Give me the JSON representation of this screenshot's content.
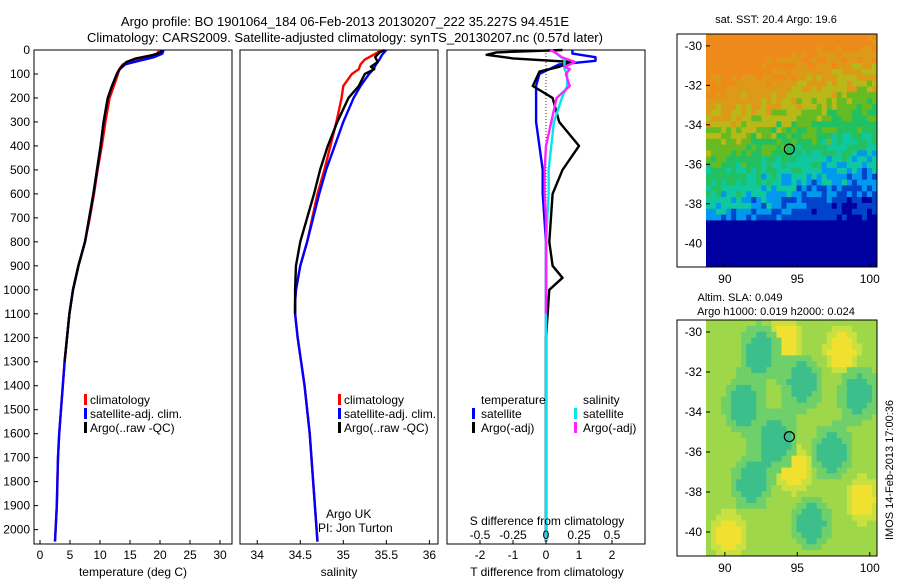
{
  "header": {
    "title_line1": "Argo profile: BO 1901064_184 06-Feb-2013 20130207_222 35.227S 94.451E",
    "title_line2": "Climatology: CARS2009. Satellite-adjusted climatology: synTS_20130207.nc (0.57d later)"
  },
  "side_stamp": "IMOS 14-Feb-2013 17:00:36",
  "colors": {
    "climatology": "#ff0000",
    "satellite": "#0000ff",
    "argo": "#000000",
    "sal_satellite": "#00e5ee",
    "sal_argo": "#ff22ff"
  },
  "chart_data": [
    {
      "id": "temperature",
      "type": "line",
      "xlabel": "temperature (deg C)",
      "ylabel": "",
      "xlim": [
        -1,
        32
      ],
      "ylim": [
        2060,
        0
      ],
      "xticks": [
        0,
        5,
        10,
        15,
        20,
        25,
        30
      ],
      "yticks": [
        0,
        100,
        200,
        300,
        400,
        500,
        600,
        700,
        800,
        900,
        1000,
        1100,
        1200,
        1300,
        1400,
        1500,
        1600,
        1700,
        1800,
        1900,
        2000
      ],
      "legend": [
        "climatology",
        "satellite-adj. clim.",
        "Argo(..raw -QC)"
      ],
      "series": [
        {
          "name": "climatology",
          "color": "#ff0000",
          "depth": [
            0,
            15,
            30,
            45,
            60,
            80,
            100,
            150,
            200,
            300,
            400,
            500,
            600,
            700,
            800,
            900,
            1000,
            1100,
            1200,
            1300,
            1400,
            1500,
            1600,
            1700,
            1800,
            1900,
            2000,
            2050
          ],
          "values": [
            19.8,
            19.6,
            17.5,
            15.0,
            13.8,
            13.2,
            13.0,
            12.3,
            11.6,
            10.9,
            10.3,
            9.6,
            9.0,
            8.3,
            7.5,
            6.4,
            5.5,
            4.9,
            4.5,
            4.1,
            3.8,
            3.5,
            3.2,
            3.0,
            2.9,
            2.8,
            2.6,
            2.5
          ]
        },
        {
          "name": "satellite-adj. clim.",
          "color": "#0000ff",
          "depth": [
            0,
            15,
            30,
            45,
            60,
            80,
            100,
            150,
            200,
            300,
            400,
            500,
            600,
            700,
            800,
            900,
            1000,
            1100,
            1200,
            1300,
            1400,
            1500,
            1600,
            1700,
            1800,
            1900,
            2000,
            2050
          ],
          "values": [
            20.6,
            20.4,
            19.0,
            16.5,
            14.2,
            13.3,
            12.8,
            12.0,
            11.3,
            10.6,
            10.1,
            9.5,
            8.9,
            8.2,
            7.5,
            6.4,
            5.5,
            4.9,
            4.5,
            4.1,
            3.8,
            3.5,
            3.2,
            3.0,
            2.9,
            2.8,
            2.6,
            2.5
          ]
        },
        {
          "name": "Argo(..raw -QC)",
          "color": "#000000",
          "depth": [
            0,
            10,
            20,
            35,
            50,
            70,
            90,
            150,
            200,
            300,
            400,
            500,
            600,
            700,
            800,
            900,
            1000,
            1100,
            1200,
            1300
          ],
          "values": [
            20.3,
            20.1,
            19.0,
            16.0,
            14.4,
            13.6,
            13.0,
            12.0,
            11.3,
            10.6,
            10.1,
            9.5,
            8.9,
            8.2,
            7.5,
            6.4,
            5.5,
            4.9,
            4.5,
            4.1
          ]
        }
      ]
    },
    {
      "id": "salinity",
      "type": "line",
      "xlabel": "salinity",
      "ylabel": "",
      "xlim": [
        33.8,
        36.1
      ],
      "ylim": [
        2060,
        0
      ],
      "xticks": [
        34,
        34.5,
        35,
        35.5,
        36
      ],
      "legend": [
        "climatology",
        "satellite-adj. clim.",
        "Argo(..raw -QC)"
      ],
      "annotation": [
        "Argo UK",
        "PI: Jon Turton"
      ],
      "series": [
        {
          "name": "climatology",
          "color": "#ff0000",
          "depth": [
            0,
            20,
            40,
            60,
            80,
            100,
            150,
            200,
            300,
            400,
            500,
            600,
            700,
            800,
            900,
            1000,
            1050,
            1100,
            1200,
            1300,
            1400,
            1500,
            1600,
            1700,
            1800,
            1900,
            2000,
            2050
          ],
          "values": [
            35.45,
            35.35,
            35.25,
            35.2,
            35.18,
            35.1,
            35.0,
            34.98,
            34.92,
            34.85,
            34.78,
            34.7,
            34.64,
            34.58,
            34.5,
            34.45,
            34.44,
            34.44,
            34.47,
            34.51,
            34.55,
            34.58,
            34.61,
            34.63,
            34.65,
            34.67,
            34.69,
            34.7
          ]
        },
        {
          "name": "satellite-adj. clim.",
          "color": "#0000ff",
          "depth": [
            0,
            20,
            40,
            60,
            80,
            100,
            150,
            200,
            300,
            400,
            500,
            600,
            700,
            800,
            900,
            1000,
            1050,
            1100,
            1200,
            1300,
            1400,
            1500,
            1600,
            1700,
            1800,
            1900,
            2000,
            2050
          ],
          "values": [
            35.5,
            35.45,
            35.42,
            35.38,
            35.35,
            35.3,
            35.2,
            35.12,
            35.0,
            34.9,
            34.8,
            34.72,
            34.65,
            34.58,
            34.5,
            34.45,
            34.44,
            34.44,
            34.47,
            34.51,
            34.55,
            34.58,
            34.61,
            34.63,
            34.65,
            34.67,
            34.69,
            34.7
          ]
        },
        {
          "name": "Argo(..raw -QC)",
          "color": "#000000",
          "depth": [
            0,
            10,
            30,
            50,
            70,
            80,
            100,
            150,
            200,
            300,
            400,
            500,
            600,
            700,
            800,
            900,
            1000,
            1050,
            1100
          ],
          "values": [
            35.48,
            35.42,
            35.37,
            35.4,
            35.32,
            35.36,
            35.25,
            35.18,
            35.06,
            34.93,
            34.82,
            34.73,
            34.66,
            34.58,
            34.5,
            34.45,
            34.44,
            34.44,
            34.44
          ]
        }
      ]
    },
    {
      "id": "difference",
      "type": "line",
      "xlabel": "T difference from climatology",
      "top_label": "S difference from climatology",
      "xlim": [
        -3,
        3
      ],
      "ylim": [
        2060,
        0
      ],
      "xticks": [
        -2,
        -1,
        0,
        1,
        2
      ],
      "s_ticks_labels": [
        "-0.5",
        "-0.25",
        "0",
        "0.25",
        "0.5"
      ],
      "s_ticks_values": [
        -0.5,
        -0.25,
        0,
        0.25,
        0.5
      ],
      "legend_headers": [
        "temperature",
        "salinity"
      ],
      "legend": [
        "satellite",
        "Argo(-adj)",
        "satellite",
        "Argo(-adj)"
      ],
      "series": [
        {
          "name": "temperature satellite",
          "color": "#0000ff",
          "depth": [
            0,
            15,
            30,
            45,
            60,
            80,
            100,
            150,
            200,
            300,
            400,
            500,
            600,
            800,
            1000,
            1200,
            1500,
            2050
          ],
          "values": [
            0.8,
            0.8,
            1.5,
            1.5,
            0.4,
            0.1,
            -0.2,
            -0.3,
            -0.3,
            -0.3,
            -0.2,
            -0.1,
            -0.1,
            0,
            0,
            0,
            0,
            0
          ]
        },
        {
          "name": "temperature Argo(-adj)",
          "color": "#000000",
          "depth": [
            0,
            10,
            20,
            35,
            50,
            70,
            90,
            150,
            200,
            300,
            400,
            500,
            600,
            800,
            900,
            950,
            1000,
            1200,
            1500,
            2050
          ],
          "values": [
            0.5,
            -1.5,
            -1.8,
            -1.0,
            0.8,
            0.4,
            -0.2,
            -0.4,
            0.2,
            0.4,
            1.0,
            0.5,
            0.2,
            0.1,
            0.2,
            0.5,
            0.1,
            0,
            0,
            0
          ]
        },
        {
          "name": "salinity satellite",
          "color": "#00e5ee",
          "depth": [
            0,
            20,
            40,
            60,
            80,
            100,
            150,
            200,
            300,
            400,
            500,
            600,
            800,
            1000,
            1200,
            1500,
            2050
          ],
          "values": [
            0.04,
            0.09,
            0.14,
            0.14,
            0.14,
            0.16,
            0.16,
            0.12,
            0.06,
            0.04,
            0.02,
            0.02,
            0.0,
            0.0,
            0.0,
            0.0,
            0.0
          ]
        },
        {
          "name": "salinity Argo(-adj)",
          "color": "#ff22ff",
          "depth": [
            0,
            10,
            30,
            50,
            70,
            80,
            100,
            150,
            200,
            300,
            400,
            500,
            600,
            700,
            800,
            900,
            1000,
            1100
          ],
          "values": [
            0.03,
            0.07,
            0.12,
            0.22,
            0.14,
            0.18,
            0.15,
            0.18,
            0.08,
            0.04,
            0.0,
            -0.01,
            -0.01,
            0.0,
            0.0,
            0.0,
            0.0,
            0.0
          ]
        }
      ]
    },
    {
      "id": "sst_map",
      "type": "heatmap",
      "title": "sat. SST: 20.4  Argo: 19.6",
      "xlim": [
        88.7,
        100.5
      ],
      "ylim": [
        -41.2,
        -29.4
      ],
      "xticks": [
        90,
        95,
        100
      ],
      "yticks": [
        -30,
        -32,
        -34,
        -36,
        -38,
        -40
      ],
      "marker": {
        "lon": 94.45,
        "lat": -35.23
      }
    },
    {
      "id": "sla_map",
      "type": "heatmap",
      "title_line1": "Altim. SLA: 0.049",
      "title_line2": "Argo h1000: 0.019 h2000: 0.024",
      "xlim": [
        88.7,
        100.5
      ],
      "ylim": [
        -41.2,
        -29.4
      ],
      "xticks": [
        90,
        95,
        100
      ],
      "yticks": [
        -30,
        -32,
        -34,
        -36,
        -38,
        -40
      ],
      "marker": {
        "lon": 94.45,
        "lat": -35.23
      }
    }
  ]
}
